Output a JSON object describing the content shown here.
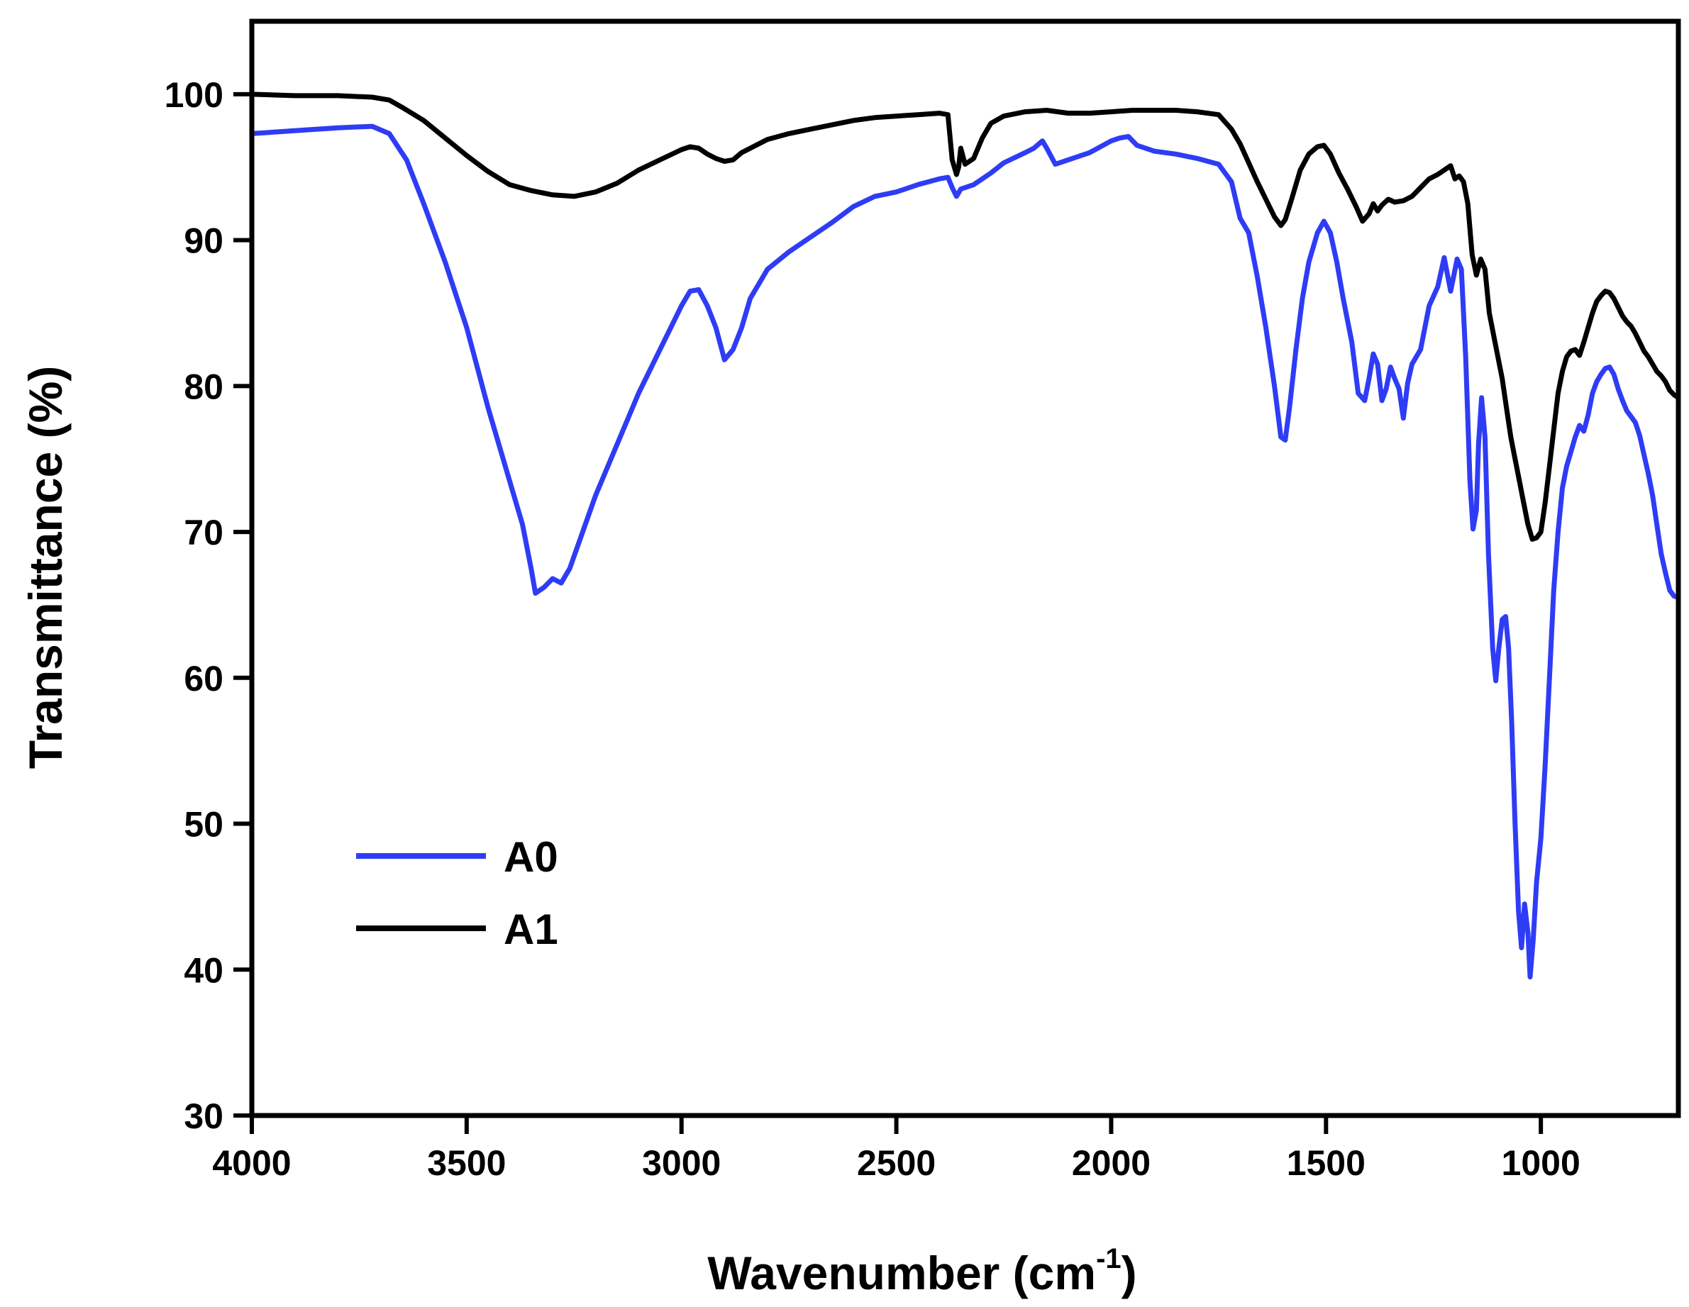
{
  "chart_data": {
    "type": "line",
    "xlabel_main": "Wavenumber (cm",
    "xlabel_sup": "-1",
    "xlabel_end": ")",
    "ylabel": "Transmittance (%)",
    "xlim": [
      4000,
      680
    ],
    "ylim": [
      30,
      105
    ],
    "x_reversed": true,
    "x_ticks": [
      4000,
      3500,
      3000,
      2500,
      2000,
      1500,
      1000
    ],
    "y_ticks": [
      30,
      40,
      50,
      60,
      70,
      80,
      90,
      100
    ],
    "x_tick_labels": [
      "4000",
      "3500",
      "3000",
      "2500",
      "2000",
      "1500",
      "1000"
    ],
    "y_tick_labels": [
      "30",
      "40",
      "50",
      "60",
      "70",
      "80",
      "90",
      "100"
    ],
    "grid": false,
    "legend_position": "lower-left",
    "series": [
      {
        "name": "A0",
        "color": "#2f3cf5",
        "points": [
          [
            4000,
            97.3
          ],
          [
            3900,
            97.5
          ],
          [
            3800,
            97.7
          ],
          [
            3720,
            97.8
          ],
          [
            3680,
            97.3
          ],
          [
            3640,
            95.5
          ],
          [
            3600,
            92.5
          ],
          [
            3550,
            88.5
          ],
          [
            3500,
            84.0
          ],
          [
            3450,
            78.5
          ],
          [
            3400,
            73.5
          ],
          [
            3370,
            70.5
          ],
          [
            3350,
            67.5
          ],
          [
            3340,
            65.8
          ],
          [
            3320,
            66.2
          ],
          [
            3300,
            66.8
          ],
          [
            3280,
            66.5
          ],
          [
            3260,
            67.5
          ],
          [
            3230,
            70.0
          ],
          [
            3200,
            72.5
          ],
          [
            3150,
            76.0
          ],
          [
            3100,
            79.5
          ],
          [
            3050,
            82.5
          ],
          [
            3000,
            85.5
          ],
          [
            2980,
            86.5
          ],
          [
            2960,
            86.6
          ],
          [
            2940,
            85.5
          ],
          [
            2920,
            84.0
          ],
          [
            2900,
            81.8
          ],
          [
            2880,
            82.5
          ],
          [
            2860,
            84.0
          ],
          [
            2840,
            86.0
          ],
          [
            2800,
            88.0
          ],
          [
            2750,
            89.2
          ],
          [
            2700,
            90.2
          ],
          [
            2650,
            91.2
          ],
          [
            2600,
            92.3
          ],
          [
            2550,
            93.0
          ],
          [
            2500,
            93.3
          ],
          [
            2450,
            93.8
          ],
          [
            2400,
            94.2
          ],
          [
            2380,
            94.3
          ],
          [
            2370,
            93.6
          ],
          [
            2360,
            93.0
          ],
          [
            2350,
            93.5
          ],
          [
            2320,
            93.8
          ],
          [
            2280,
            94.6
          ],
          [
            2250,
            95.3
          ],
          [
            2200,
            96.0
          ],
          [
            2180,
            96.3
          ],
          [
            2160,
            96.8
          ],
          [
            2150,
            96.3
          ],
          [
            2130,
            95.2
          ],
          [
            2100,
            95.5
          ],
          [
            2050,
            96.0
          ],
          [
            2000,
            96.8
          ],
          [
            1980,
            97.0
          ],
          [
            1960,
            97.1
          ],
          [
            1940,
            96.5
          ],
          [
            1900,
            96.1
          ],
          [
            1850,
            95.9
          ],
          [
            1800,
            95.6
          ],
          [
            1750,
            95.2
          ],
          [
            1720,
            94.0
          ],
          [
            1700,
            91.5
          ],
          [
            1680,
            90.5
          ],
          [
            1660,
            87.5
          ],
          [
            1640,
            84.0
          ],
          [
            1620,
            80.0
          ],
          [
            1605,
            76.5
          ],
          [
            1595,
            76.3
          ],
          [
            1585,
            78.5
          ],
          [
            1570,
            82.5
          ],
          [
            1555,
            86.0
          ],
          [
            1540,
            88.5
          ],
          [
            1520,
            90.5
          ],
          [
            1505,
            91.3
          ],
          [
            1490,
            90.5
          ],
          [
            1475,
            88.5
          ],
          [
            1460,
            86.0
          ],
          [
            1440,
            83.0
          ],
          [
            1425,
            79.5
          ],
          [
            1410,
            79.0
          ],
          [
            1400,
            80.5
          ],
          [
            1390,
            82.2
          ],
          [
            1380,
            81.5
          ],
          [
            1370,
            79.0
          ],
          [
            1360,
            79.8
          ],
          [
            1350,
            81.3
          ],
          [
            1340,
            80.5
          ],
          [
            1330,
            79.8
          ],
          [
            1320,
            77.8
          ],
          [
            1310,
            80.2
          ],
          [
            1300,
            81.5
          ],
          [
            1280,
            82.5
          ],
          [
            1260,
            85.5
          ],
          [
            1240,
            86.8
          ],
          [
            1225,
            88.8
          ],
          [
            1210,
            86.5
          ],
          [
            1195,
            88.7
          ],
          [
            1185,
            88.0
          ],
          [
            1175,
            82.0
          ],
          [
            1165,
            73.5
          ],
          [
            1158,
            70.2
          ],
          [
            1150,
            71.5
          ],
          [
            1145,
            76.0
          ],
          [
            1138,
            79.2
          ],
          [
            1130,
            76.5
          ],
          [
            1122,
            68.5
          ],
          [
            1112,
            62.0
          ],
          [
            1105,
            59.8
          ],
          [
            1098,
            62.0
          ],
          [
            1090,
            64.0
          ],
          [
            1082,
            64.2
          ],
          [
            1075,
            62.0
          ],
          [
            1068,
            57.0
          ],
          [
            1060,
            50.0
          ],
          [
            1052,
            44.0
          ],
          [
            1045,
            41.5
          ],
          [
            1038,
            44.5
          ],
          [
            1030,
            42.5
          ],
          [
            1025,
            39.5
          ],
          [
            1018,
            42.0
          ],
          [
            1010,
            46.0
          ],
          [
            1000,
            49.0
          ],
          [
            990,
            54.0
          ],
          [
            980,
            60.0
          ],
          [
            970,
            66.0
          ],
          [
            960,
            70.0
          ],
          [
            950,
            73.0
          ],
          [
            940,
            74.5
          ],
          [
            930,
            75.5
          ],
          [
            920,
            76.5
          ],
          [
            910,
            77.3
          ],
          [
            900,
            76.9
          ],
          [
            890,
            78.0
          ],
          [
            880,
            79.5
          ],
          [
            870,
            80.3
          ],
          [
            860,
            80.8
          ],
          [
            850,
            81.2
          ],
          [
            840,
            81.3
          ],
          [
            830,
            80.8
          ],
          [
            820,
            79.8
          ],
          [
            810,
            79.0
          ],
          [
            800,
            78.3
          ],
          [
            790,
            77.9
          ],
          [
            780,
            77.5
          ],
          [
            770,
            76.6
          ],
          [
            760,
            75.3
          ],
          [
            750,
            74.0
          ],
          [
            740,
            72.5
          ],
          [
            730,
            70.5
          ],
          [
            720,
            68.5
          ],
          [
            710,
            67.2
          ],
          [
            700,
            66.0
          ],
          [
            690,
            65.6
          ],
          [
            680,
            65.5
          ]
        ]
      },
      {
        "name": "A1",
        "color": "#000000",
        "points": [
          [
            4000,
            100.0
          ],
          [
            3900,
            99.9
          ],
          [
            3800,
            99.9
          ],
          [
            3720,
            99.8
          ],
          [
            3680,
            99.6
          ],
          [
            3650,
            99.1
          ],
          [
            3600,
            98.2
          ],
          [
            3550,
            97.0
          ],
          [
            3500,
            95.8
          ],
          [
            3450,
            94.7
          ],
          [
            3400,
            93.8
          ],
          [
            3350,
            93.4
          ],
          [
            3300,
            93.1
          ],
          [
            3250,
            93.0
          ],
          [
            3200,
            93.3
          ],
          [
            3150,
            93.9
          ],
          [
            3100,
            94.8
          ],
          [
            3050,
            95.5
          ],
          [
            3000,
            96.2
          ],
          [
            2980,
            96.4
          ],
          [
            2960,
            96.3
          ],
          [
            2940,
            95.9
          ],
          [
            2920,
            95.6
          ],
          [
            2900,
            95.4
          ],
          [
            2880,
            95.5
          ],
          [
            2860,
            96.0
          ],
          [
            2800,
            96.9
          ],
          [
            2750,
            97.3
          ],
          [
            2700,
            97.6
          ],
          [
            2650,
            97.9
          ],
          [
            2600,
            98.2
          ],
          [
            2550,
            98.4
          ],
          [
            2500,
            98.5
          ],
          [
            2450,
            98.6
          ],
          [
            2400,
            98.7
          ],
          [
            2380,
            98.6
          ],
          [
            2370,
            95.5
          ],
          [
            2360,
            94.5
          ],
          [
            2355,
            95.0
          ],
          [
            2350,
            96.3
          ],
          [
            2340,
            95.2
          ],
          [
            2320,
            95.6
          ],
          [
            2300,
            97.0
          ],
          [
            2280,
            98.0
          ],
          [
            2250,
            98.5
          ],
          [
            2200,
            98.8
          ],
          [
            2150,
            98.9
          ],
          [
            2100,
            98.7
          ],
          [
            2050,
            98.7
          ],
          [
            2000,
            98.8
          ],
          [
            1950,
            98.9
          ],
          [
            1900,
            98.9
          ],
          [
            1850,
            98.9
          ],
          [
            1800,
            98.8
          ],
          [
            1750,
            98.6
          ],
          [
            1720,
            97.6
          ],
          [
            1700,
            96.6
          ],
          [
            1680,
            95.3
          ],
          [
            1660,
            94.0
          ],
          [
            1640,
            92.8
          ],
          [
            1620,
            91.6
          ],
          [
            1605,
            91.0
          ],
          [
            1595,
            91.4
          ],
          [
            1580,
            92.8
          ],
          [
            1560,
            94.8
          ],
          [
            1540,
            95.9
          ],
          [
            1520,
            96.4
          ],
          [
            1505,
            96.5
          ],
          [
            1490,
            95.9
          ],
          [
            1470,
            94.6
          ],
          [
            1450,
            93.5
          ],
          [
            1430,
            92.3
          ],
          [
            1415,
            91.3
          ],
          [
            1400,
            91.8
          ],
          [
            1390,
            92.5
          ],
          [
            1380,
            92.0
          ],
          [
            1370,
            92.4
          ],
          [
            1355,
            92.8
          ],
          [
            1340,
            92.6
          ],
          [
            1320,
            92.7
          ],
          [
            1300,
            93.0
          ],
          [
            1280,
            93.6
          ],
          [
            1260,
            94.2
          ],
          [
            1240,
            94.5
          ],
          [
            1220,
            94.9
          ],
          [
            1210,
            95.1
          ],
          [
            1200,
            94.2
          ],
          [
            1190,
            94.4
          ],
          [
            1180,
            94.0
          ],
          [
            1170,
            92.5
          ],
          [
            1160,
            89.0
          ],
          [
            1150,
            87.6
          ],
          [
            1140,
            88.7
          ],
          [
            1130,
            88.0
          ],
          [
            1120,
            85.0
          ],
          [
            1110,
            83.5
          ],
          [
            1100,
            82.0
          ],
          [
            1090,
            80.5
          ],
          [
            1080,
            78.5
          ],
          [
            1070,
            76.5
          ],
          [
            1060,
            75.0
          ],
          [
            1050,
            73.5
          ],
          [
            1040,
            72.0
          ],
          [
            1030,
            70.5
          ],
          [
            1020,
            69.5
          ],
          [
            1010,
            69.6
          ],
          [
            1000,
            70.0
          ],
          [
            990,
            72.0
          ],
          [
            980,
            74.5
          ],
          [
            970,
            77.0
          ],
          [
            960,
            79.5
          ],
          [
            950,
            81.0
          ],
          [
            940,
            82.0
          ],
          [
            930,
            82.4
          ],
          [
            920,
            82.5
          ],
          [
            910,
            82.1
          ],
          [
            900,
            83.0
          ],
          [
            890,
            84.0
          ],
          [
            880,
            85.0
          ],
          [
            870,
            85.8
          ],
          [
            860,
            86.2
          ],
          [
            850,
            86.5
          ],
          [
            840,
            86.4
          ],
          [
            830,
            86.0
          ],
          [
            820,
            85.4
          ],
          [
            810,
            84.8
          ],
          [
            800,
            84.4
          ],
          [
            790,
            84.1
          ],
          [
            780,
            83.6
          ],
          [
            770,
            83.0
          ],
          [
            760,
            82.4
          ],
          [
            750,
            82.0
          ],
          [
            740,
            81.5
          ],
          [
            730,
            81.0
          ],
          [
            720,
            80.7
          ],
          [
            710,
            80.3
          ],
          [
            700,
            79.7
          ],
          [
            690,
            79.4
          ],
          [
            680,
            79.2
          ]
        ]
      }
    ]
  }
}
